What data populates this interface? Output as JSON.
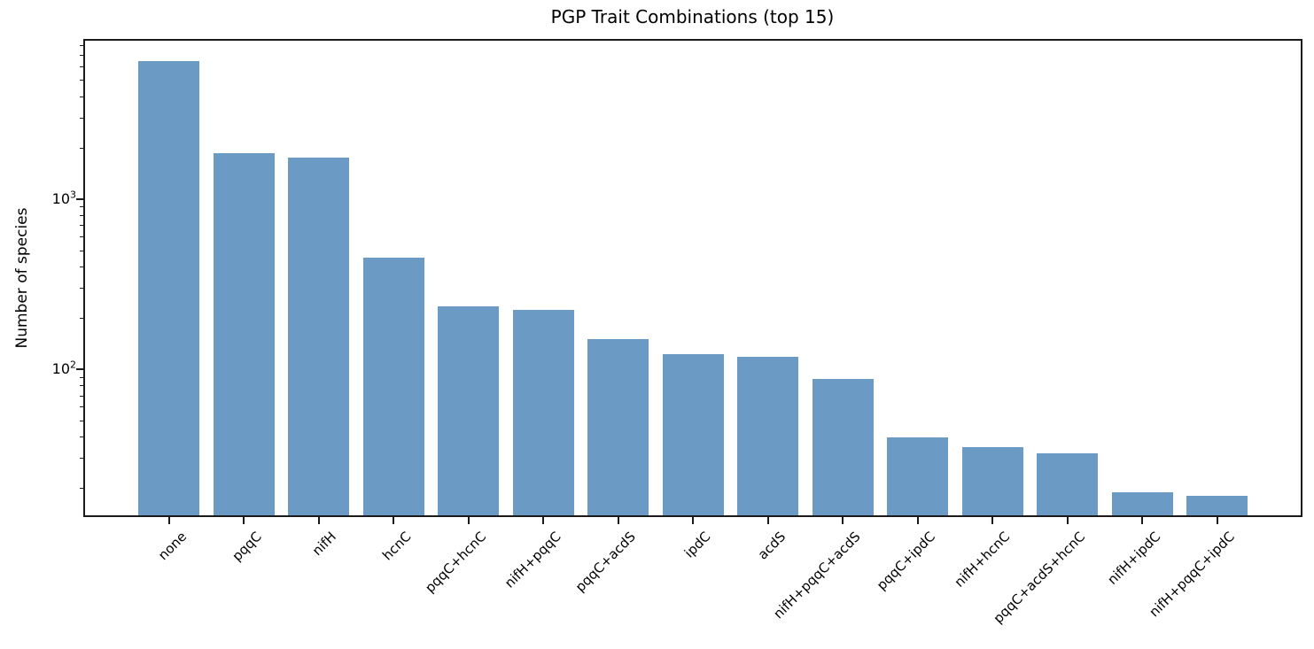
{
  "chart_data": {
    "type": "bar",
    "title": "PGP Trait Combinations (top 15)",
    "xlabel": "",
    "ylabel": "Number of species",
    "yscale": "log",
    "ylim": [
      13.9,
      8660
    ],
    "grid": false,
    "legend_position": "none",
    "categories": [
      "none",
      "pqqC",
      "nifH",
      "hcnC",
      "pqqC+hcnC",
      "nifH+pqqC",
      "pqqC+acdS",
      "ipdC",
      "acdS",
      "nifH+pqqC+acdS",
      "pqqC+ipdC",
      "nifH+hcnC",
      "pqqC+acdS+hcnC",
      "nifH+ipdC",
      "nifH+pqqC+ipdC"
    ],
    "values": [
      6470,
      1860,
      1765,
      455,
      234,
      225,
      151,
      123,
      119,
      88,
      40,
      35,
      32,
      19,
      18
    ],
    "y_major_ticks": [
      {
        "value": 1000,
        "base": "10",
        "exp": "3"
      },
      {
        "value": 100,
        "base": "10",
        "exp": "2"
      }
    ],
    "x_tick_rotation_deg": 45,
    "colors": {
      "bar": "#6b9bc4",
      "axis": "#1a1a1a",
      "text": "#000000"
    }
  }
}
